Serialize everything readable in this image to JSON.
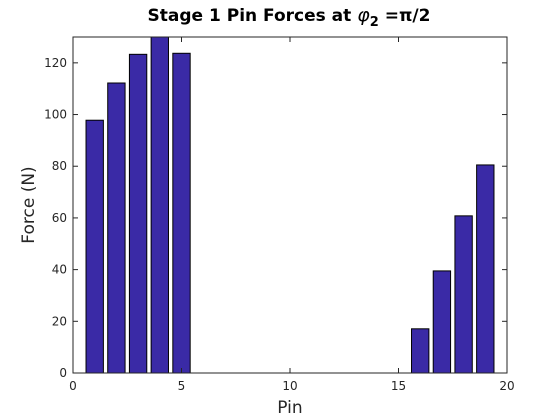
{
  "chart_data": {
    "type": "bar",
    "title": {
      "prefix": "Stage 1 Pin Forces at ",
      "symbol": "φ",
      "subscript": "2",
      "suffix": " =π/2"
    },
    "xlabel": "Pin",
    "ylabel": "Force (N)",
    "xlim": [
      0,
      20
    ],
    "ylim": [
      0,
      130
    ],
    "xticks": [
      0,
      5,
      10,
      15,
      20
    ],
    "yticks": [
      0,
      20,
      40,
      60,
      80,
      100,
      120
    ],
    "x": [
      1,
      2,
      3,
      4,
      5,
      16,
      17,
      18,
      19
    ],
    "values": [
      97.8,
      112.2,
      123.3,
      130.5,
      123.7,
      17.1,
      39.5,
      60.8,
      80.5
    ],
    "bar_color": "#3a2aa6",
    "edge_color": "#000000",
    "grid": false
  }
}
